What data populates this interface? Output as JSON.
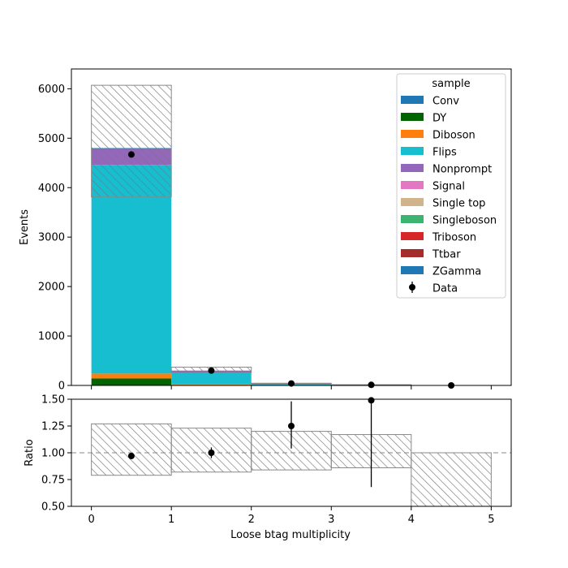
{
  "chart_data": [
    {
      "type": "stacked-histogram",
      "panel": "main",
      "ylabel": "Events",
      "xlim": [
        -0.25,
        5.25
      ],
      "ylim": [
        0,
        6400
      ],
      "yticks": [
        0,
        1000,
        2000,
        3000,
        4000,
        5000,
        6000
      ],
      "bin_edges": [
        0,
        1,
        2,
        3,
        4,
        5
      ],
      "legend_title": "sample",
      "legend_placement": "top-right",
      "series": [
        {
          "name": "Conv",
          "color": "#1f77b4",
          "values": [
            0,
            0,
            0,
            0,
            0
          ]
        },
        {
          "name": "DY",
          "color": "#006400",
          "values": [
            140,
            10,
            0,
            0,
            0
          ]
        },
        {
          "name": "Diboson",
          "color": "#ff7f0e",
          "values": [
            100,
            10,
            5,
            0,
            0
          ]
        },
        {
          "name": "Flips",
          "color": "#17becf",
          "values": [
            4220,
            240,
            20,
            5,
            0
          ]
        },
        {
          "name": "Nonprompt",
          "color": "#9467bd",
          "values": [
            320,
            40,
            10,
            5,
            0
          ]
        },
        {
          "name": "Signal",
          "color": "#e377c2",
          "values": [
            0,
            0,
            0,
            0,
            0
          ]
        },
        {
          "name": "Single top",
          "color": "#d2b48c",
          "values": [
            0,
            0,
            0,
            0,
            0
          ]
        },
        {
          "name": "Singleboson",
          "color": "#3cb371",
          "values": [
            0,
            0,
            0,
            0,
            0
          ]
        },
        {
          "name": "Triboson",
          "color": "#d62728",
          "values": [
            0,
            0,
            0,
            0,
            0
          ]
        },
        {
          "name": "Ttbar",
          "color": "#a52a2a",
          "values": [
            0,
            0,
            0,
            0,
            0
          ]
        },
        {
          "name": "ZGamma",
          "color": "#1f77b4",
          "values": [
            20,
            0,
            0,
            0,
            0
          ]
        }
      ],
      "uncertainty_band": {
        "low": [
          3810,
          260,
          30,
          12,
          0
        ],
        "high": [
          6070,
          370,
          45,
          15,
          0
        ]
      },
      "data": {
        "name": "Data",
        "x": [
          0.5,
          1.5,
          2.5,
          3.5,
          4.5
        ],
        "y": [
          4670,
          300,
          40,
          12,
          0
        ]
      }
    },
    {
      "type": "ratio",
      "panel": "ratio",
      "ylabel": "Ratio",
      "xlabel": "Loose btag multiplicity",
      "xlim": [
        -0.25,
        5.25
      ],
      "ylim": [
        0.5,
        1.5
      ],
      "yticks": [
        0.5,
        0.75,
        1.0,
        1.25,
        1.5
      ],
      "ytick_labels": [
        "0.50",
        "0.75",
        "1.00",
        "1.25",
        "1.50"
      ],
      "xticks": [
        0,
        1,
        2,
        3,
        4,
        5
      ],
      "reference_line": 1.0,
      "bin_edges": [
        0,
        1,
        2,
        3,
        4,
        5
      ],
      "band_low": [
        0.79,
        0.82,
        0.84,
        0.86,
        0.5
      ],
      "band_high": [
        1.27,
        1.23,
        1.2,
        1.17,
        1.0
      ],
      "points": {
        "x": [
          0.5,
          1.5,
          2.5,
          3.5
        ],
        "y": [
          0.97,
          1.0,
          1.25,
          1.49
        ],
        "err_low": [
          0.02,
          0.05,
          0.21,
          0.81
        ],
        "err_high": [
          0.02,
          0.05,
          0.23,
          0.01
        ]
      }
    }
  ]
}
